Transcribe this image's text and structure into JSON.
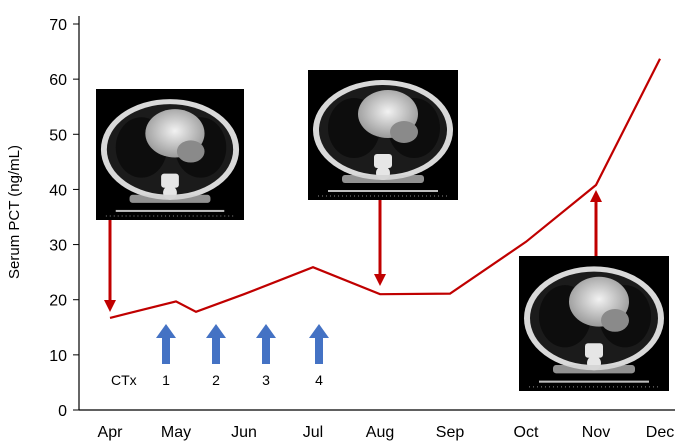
{
  "chart_data": {
    "type": "line",
    "x": [
      "Apr",
      "May",
      "Jun",
      "Jul",
      "Aug",
      "Sep",
      "Oct",
      "Nov",
      "Dec"
    ],
    "series": [
      {
        "points": [
          {
            "x": "Apr",
            "y": 16.7
          },
          {
            "x": "May",
            "y": 19.7
          },
          {
            "x": "May",
            "y": 17.8
          },
          {
            "x": "Jun",
            "y": 21
          },
          {
            "x": "Jul",
            "y": 25.9
          },
          {
            "x": "Aug",
            "y": 21
          },
          {
            "x": "Sep",
            "y": 21.1
          },
          {
            "x": "Oct",
            "y": 30.5
          },
          {
            "x": "Nov",
            "y": 40.8
          },
          {
            "x": "Dec",
            "y": 63.7
          }
        ],
        "color": "#c00000"
      }
    ],
    "ylabel": "Serum PCT (ng/mL)",
    "xlabel": "",
    "ylim": [
      0,
      70
    ],
    "yticks": [
      0,
      10,
      20,
      30,
      40,
      50,
      60,
      70
    ],
    "grid": false,
    "annotations": {
      "ctx_label": "CTx",
      "cycles": [
        {
          "label": "1",
          "month": "May"
        },
        {
          "label": "2",
          "month": "Jun"
        },
        {
          "label": "3",
          "month": "Jun"
        },
        {
          "label": "4",
          "month": "Jul"
        }
      ],
      "ct_images": [
        {
          "id": "ct-scan-apr",
          "arrow_to": "Apr"
        },
        {
          "id": "ct-scan-aug",
          "arrow_to": "Aug"
        },
        {
          "id": "ct-scan-nov",
          "arrow_to": "Nov"
        }
      ]
    },
    "colors": {
      "line": "#c00000",
      "ctx_arrow": "#4472c4",
      "axis": "#000000"
    }
  }
}
